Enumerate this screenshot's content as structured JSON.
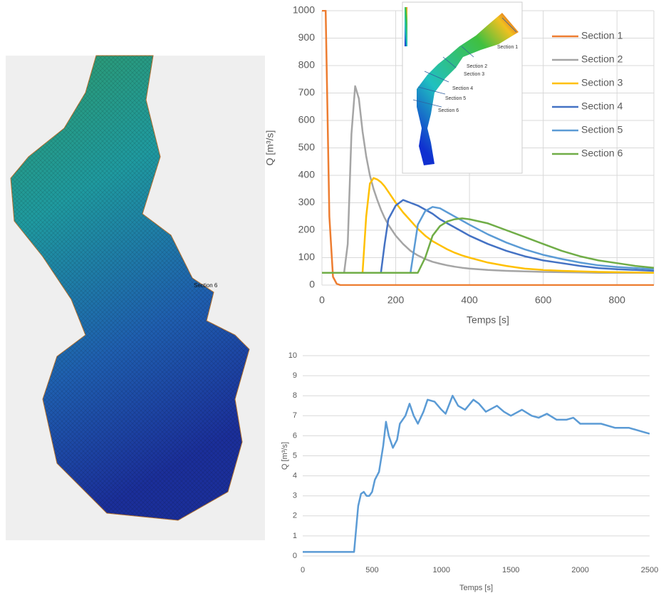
{
  "chart_data": [
    {
      "type": "line",
      "x_label": "Temps [s]",
      "y_label": "Q [m³/s]",
      "x": [
        0,
        10,
        20,
        30,
        40,
        50,
        60,
        70,
        80,
        90,
        100,
        110,
        120,
        130,
        140,
        150,
        160,
        170,
        180,
        200,
        220,
        240,
        260,
        280,
        300,
        320,
        340,
        360,
        380,
        400,
        450,
        500,
        550,
        600,
        650,
        700,
        750,
        800,
        850,
        900
      ],
      "series": [
        {
          "name": "Section 1",
          "color": "#ed7d31",
          "values": [
            1000,
            1000,
            250,
            30,
            5,
            0,
            0,
            0,
            0,
            0,
            0,
            0,
            0,
            0,
            0,
            0,
            0,
            0,
            0,
            0,
            0,
            0,
            0,
            0,
            0,
            0,
            0,
            0,
            0,
            0,
            0,
            0,
            0,
            0,
            0,
            0,
            0,
            0,
            0,
            0
          ]
        },
        {
          "name": "Section 2",
          "color": "#a5a5a5",
          "values": [
            45,
            45,
            45,
            45,
            45,
            45,
            45,
            150,
            550,
            725,
            680,
            560,
            470,
            400,
            350,
            310,
            275,
            245,
            220,
            180,
            150,
            125,
            108,
            95,
            85,
            78,
            72,
            67,
            63,
            60,
            55,
            52,
            50,
            48,
            47,
            46,
            45,
            45,
            45,
            45
          ]
        },
        {
          "name": "Section 3",
          "color": "#ffc000",
          "values": [
            45,
            45,
            45,
            45,
            45,
            45,
            45,
            45,
            45,
            45,
            45,
            45,
            250,
            370,
            390,
            385,
            375,
            360,
            340,
            300,
            265,
            235,
            205,
            180,
            160,
            145,
            130,
            118,
            108,
            100,
            82,
            70,
            60,
            55,
            52,
            50,
            48,
            47,
            46,
            45
          ]
        },
        {
          "name": "Section 4",
          "color": "#4472c4",
          "values": [
            45,
            45,
            45,
            45,
            45,
            45,
            45,
            45,
            45,
            45,
            45,
            45,
            45,
            45,
            45,
            45,
            45,
            150,
            240,
            290,
            310,
            300,
            290,
            275,
            260,
            240,
            225,
            210,
            195,
            180,
            150,
            125,
            105,
            90,
            80,
            70,
            62,
            58,
            55,
            52
          ]
        },
        {
          "name": "Section 5",
          "color": "#5b9bd5",
          "values": [
            45,
            45,
            45,
            45,
            45,
            45,
            45,
            45,
            45,
            45,
            45,
            45,
            45,
            45,
            45,
            45,
            45,
            45,
            45,
            45,
            45,
            45,
            220,
            270,
            285,
            280,
            265,
            250,
            235,
            220,
            185,
            155,
            130,
            110,
            95,
            82,
            72,
            66,
            62,
            58
          ]
        },
        {
          "name": "Section 6",
          "color": "#70ad47",
          "values": [
            45,
            45,
            45,
            45,
            45,
            45,
            45,
            45,
            45,
            45,
            45,
            45,
            45,
            45,
            45,
            45,
            45,
            45,
            45,
            45,
            45,
            45,
            45,
            100,
            180,
            215,
            232,
            240,
            243,
            240,
            225,
            200,
            175,
            150,
            125,
            105,
            90,
            80,
            70,
            63
          ]
        }
      ],
      "xlim": [
        0,
        900
      ],
      "xticks": [
        0,
        200,
        400,
        600,
        800
      ],
      "ylim": [
        0,
        1000
      ],
      "yticks": [
        0,
        100,
        200,
        300,
        400,
        500,
        600,
        700,
        800,
        900,
        1000
      ],
      "grid": "both",
      "legend": "right"
    },
    {
      "type": "line",
      "x_label": "Temps [s]",
      "y_label": "Q [m³/s]",
      "x": [
        0,
        100,
        200,
        300,
        370,
        400,
        420,
        440,
        460,
        480,
        500,
        520,
        550,
        580,
        600,
        620,
        650,
        680,
        700,
        740,
        770,
        800,
        830,
        870,
        900,
        950,
        1000,
        1030,
        1080,
        1120,
        1170,
        1230,
        1270,
        1320,
        1400,
        1450,
        1500,
        1580,
        1650,
        1700,
        1760,
        1830,
        1900,
        1950,
        2000,
        2080,
        2150,
        2250,
        2350,
        2450,
        2500
      ],
      "series": [
        {
          "color": "#5b9bd5",
          "values": [
            0.2,
            0.2,
            0.2,
            0.2,
            0.2,
            2.5,
            3.1,
            3.2,
            3.0,
            3.0,
            3.2,
            3.8,
            4.2,
            5.5,
            6.7,
            6.0,
            5.4,
            5.8,
            6.6,
            7.0,
            7.6,
            7.0,
            6.6,
            7.2,
            7.8,
            7.7,
            7.3,
            7.1,
            8.0,
            7.5,
            7.3,
            7.8,
            7.6,
            7.2,
            7.5,
            7.2,
            7.0,
            7.3,
            7.0,
            6.9,
            7.1,
            6.8,
            6.8,
            6.9,
            6.6,
            6.6,
            6.6,
            6.4,
            6.4,
            6.2,
            6.1
          ]
        }
      ],
      "xlim": [
        0,
        2500
      ],
      "xticks": [
        0,
        500,
        1000,
        1500,
        2000,
        2500
      ],
      "ylim": [
        0,
        10
      ],
      "yticks": [
        0,
        1,
        2,
        3,
        4,
        5,
        6,
        7,
        8,
        9,
        10
      ],
      "grid": "y",
      "legend": "none"
    }
  ]
}
